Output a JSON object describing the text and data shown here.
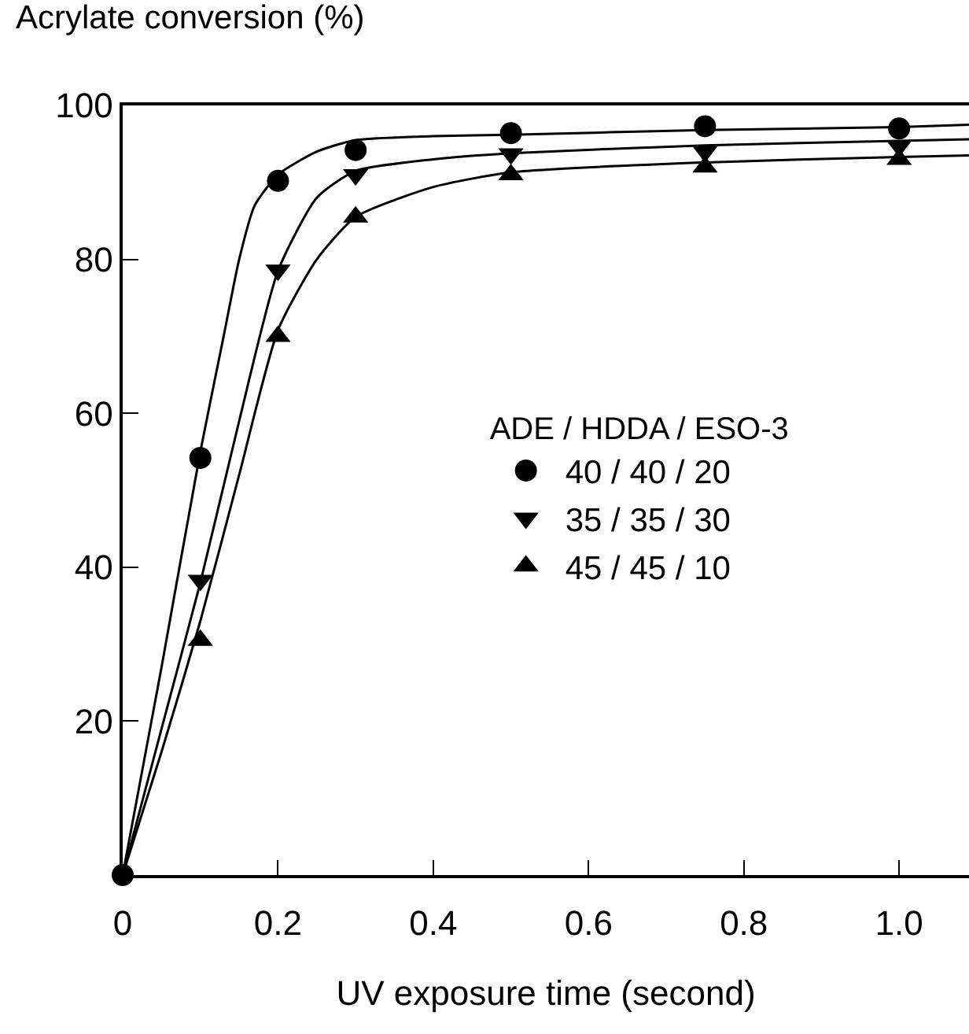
{
  "chart_data": {
    "type": "scatter",
    "xlabel": "UV exposure time (second)",
    "ylabel": "Acrylate conversion (%)",
    "legend_title": "ADE / HDDA / ESO-3",
    "legend": "right",
    "grid": false,
    "xlim": [
      0,
      1.09
    ],
    "xticks": [
      0,
      0.2,
      0.4,
      0.6,
      0.8,
      {
        "value": 1,
        "label": "1.0"
      }
    ],
    "ylim": [
      0,
      100
    ],
    "yticks": [
      {
        "value": 0,
        "label": null
      },
      20,
      40,
      60,
      80,
      100
    ],
    "series": [
      {
        "name": "40 / 40 / 20",
        "color": "#000000",
        "marker": "circle",
        "x": [
          0,
          0.1,
          0.2,
          0.3,
          0.5,
          0.75,
          1.0
        ],
        "values": [
          0,
          54.2,
          90.2,
          94.2,
          96.4,
          97.3,
          97
        ]
      },
      {
        "name": "35 / 35 / 30",
        "color": "#000000",
        "marker": "triangle-down",
        "x": [
          0.1,
          0.2,
          0.3,
          0.5,
          0.75,
          1.0
        ],
        "values": [
          38.3,
          78.6,
          91,
          93.7,
          94,
          94.7
        ]
      },
      {
        "name": "45 / 45 / 10",
        "color": "#000000",
        "marker": "triangle",
        "x": [
          0.1,
          0.2,
          0.3,
          0.5,
          0.75,
          1.0
        ],
        "values": [
          30.5,
          70,
          85.5,
          91,
          92,
          93
        ]
      },
      {
        "type": "line",
        "color": "#000000",
        "marker": "none",
        "line_style": "solid",
        "x": [
          0,
          0.05,
          0.1,
          0.13,
          0.15,
          0.17,
          0.2,
          0.25,
          0.3,
          0.4,
          0.5,
          0.75,
          1.0,
          1.09
        ],
        "values": [
          0,
          27,
          55,
          70,
          80,
          87,
          91,
          94,
          95.5,
          96,
          96.2,
          96.8,
          97.2,
          97.5
        ]
      },
      {
        "type": "line",
        "color": "#000000",
        "marker": "none",
        "line_style": "solid",
        "x": [
          0,
          0.05,
          0.1,
          0.15,
          0.2,
          0.25,
          0.3,
          0.4,
          0.5,
          0.75,
          1.0,
          1.09
        ],
        "values": [
          0,
          19,
          38,
          59,
          78.5,
          88,
          91.5,
          93,
          93.8,
          94.8,
          95.4,
          95.6
        ]
      },
      {
        "type": "line",
        "color": "#000000",
        "marker": "none",
        "line_style": "solid",
        "x": [
          0,
          0.05,
          0.1,
          0.15,
          0.2,
          0.25,
          0.3,
          0.4,
          0.5,
          0.75,
          1.0,
          1.09
        ],
        "values": [
          0,
          16,
          33,
          52,
          70.8,
          80,
          85.5,
          89.4,
          91.3,
          92.6,
          93.3,
          93.5
        ]
      }
    ]
  }
}
